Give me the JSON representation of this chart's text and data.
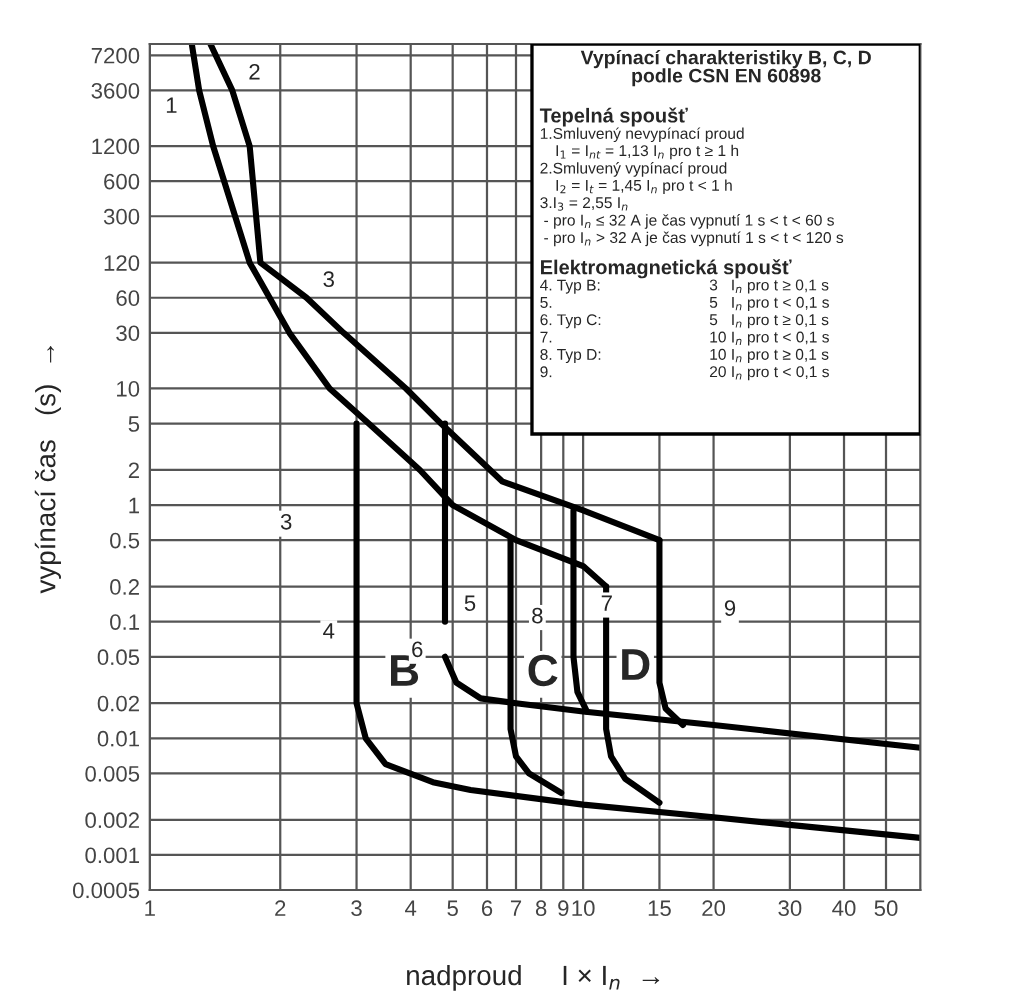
{
  "chart_data": {
    "type": "line",
    "title": "Vypínací charakteristiky B, C, D\npodle CSN EN 60898",
    "xlabel": "nadproud     I × I$_{n}$  →",
    "ylabel": "vypínací čas   (s)  →",
    "log": "xy",
    "grid": true,
    "legend": false,
    "marker": "none",
    "line_style": "solid",
    "xlim": [
      1,
      60
    ],
    "xticks": [
      1,
      2,
      3,
      4,
      5,
      6,
      7,
      8,
      9,
      10,
      15,
      20,
      30,
      40,
      50
    ],
    "ylim": [
      0.0005,
      9000
    ],
    "yticks": [
      0.0005,
      0.001,
      0.002,
      0.005,
      0.01,
      0.02,
      0.05,
      0.1,
      0.2,
      0.5,
      1,
      2,
      5,
      10,
      30,
      60,
      120,
      300,
      600,
      1200,
      3600,
      7200
    ],
    "series": [
      {
        "color": "#000000",
        "x": [
          1.25,
          1.3,
          1.4,
          1.7,
          2.1,
          2.6,
          3.2,
          4.2,
          5,
          7,
          10,
          11.3
        ],
        "values": [
          9000,
          3600,
          1200,
          120,
          30,
          10,
          5,
          2,
          1,
          0.5,
          0.3,
          0.2
        ]
      },
      {
        "color": "#000000",
        "x": [
          1.38,
          1.55,
          1.7,
          1.8,
          2.3,
          2.8,
          3.9,
          4.7,
          6.5,
          10,
          15
        ],
        "values": [
          9000,
          3600,
          1200,
          120,
          60,
          30,
          10,
          5,
          1.6,
          0.9,
          0.5
        ]
      },
      {
        "color": "#000000",
        "x": [
          3,
          3,
          3,
          3.15,
          3.5,
          4.5,
          5.5,
          10,
          20,
          60
        ],
        "values": [
          5,
          0.1,
          0.02,
          0.01,
          0.006,
          0.0042,
          0.0036,
          0.0027,
          0.0021,
          0.0014
        ]
      },
      {
        "color": "#000000",
        "x": [
          4.8,
          4.8
        ],
        "values": [
          5,
          0.1
        ]
      },
      {
        "color": "#000000",
        "x": [
          4.8,
          5.1,
          5.8,
          7,
          10,
          20,
          60
        ],
        "values": [
          0.05,
          0.03,
          0.022,
          0.02,
          0.017,
          0.013,
          0.0083
        ]
      },
      {
        "color": "#000000",
        "x": [
          6.8,
          6.8,
          7,
          7.5,
          8.9
        ],
        "values": [
          0.5,
          0.012,
          0.007,
          0.005,
          0.0034
        ]
      },
      {
        "color": "#000000",
        "x": [
          9.5,
          9.5,
          9.5,
          9.5,
          9.7,
          10.2
        ],
        "values": [
          0.9,
          0.1,
          0.07,
          0.05,
          0.025,
          0.017
        ]
      },
      {
        "color": "#000000",
        "x": [
          11.3,
          11.3,
          11.6,
          12.5,
          15
        ],
        "values": [
          0.2,
          0.012,
          0.007,
          0.0045,
          0.0028
        ]
      },
      {
        "color": "#000000",
        "x": [
          15,
          15,
          15.5,
          17
        ],
        "values": [
          0.5,
          0.03,
          0.018,
          0.013
        ]
      }
    ],
    "annotations": [
      "Tepelná spoušť",
      "1.Smluvený nevypínací proud",
      "I$_{1}$ = I$_{nt}$ = 1,13 I$_{n}$ pro t ≥ 1 h",
      "2.Smluvený vypínací proud",
      "I$_{2}$ = I$_{t}$ = 1,45 I$_{n}$ pro t < 1 h",
      "3.I$_{3}$ = 2,55 I$_{n}$",
      "- pro I$_{n}$ ≤ 32 A je čas vypnutí 1 s < t < 60 s",
      "- pro I$_{n}$ > 32 A je čas vypnutí 1 s < t < 120 s",
      "Elektromagnetická spoušť",
      "4. Typ B:",
      "3   I$_{n}$ pro t ≥ 0,1 s",
      "5.",
      "5   I$_{n}$ pro t < 0,1 s",
      "6. Typ C:",
      "5   I$_{n}$ pro t ≥ 0,1 s",
      "7.",
      "10 I$_{n}$ pro t < 0,1 s",
      "8. Typ D:",
      "10 I$_{n}$ pro t ≥ 0,1 s",
      "9.",
      "20 I$_{n}$ pro t < 0,1 s",
      "3",
      "9",
      "B",
      "C",
      "D",
      {
        "text": "1",
        "x": 1.3,
        "y": 3600
      },
      {
        "text": "2",
        "x": 1.55,
        "y": 3600
      },
      {
        "text": "3",
        "x": 2.3,
        "y": 60
      },
      {
        "text": "4",
        "x": 3,
        "y": 0.1
      },
      {
        "text": "5",
        "x": 4.8,
        "y": 0.1
      },
      {
        "text": "6",
        "x": 4.8,
        "y": 0.05
      },
      {
        "text": "7",
        "x": 9.5,
        "y": 0.1
      },
      {
        "text": "8",
        "x": 9.5,
        "y": 0.07
      }
    ]
  }
}
